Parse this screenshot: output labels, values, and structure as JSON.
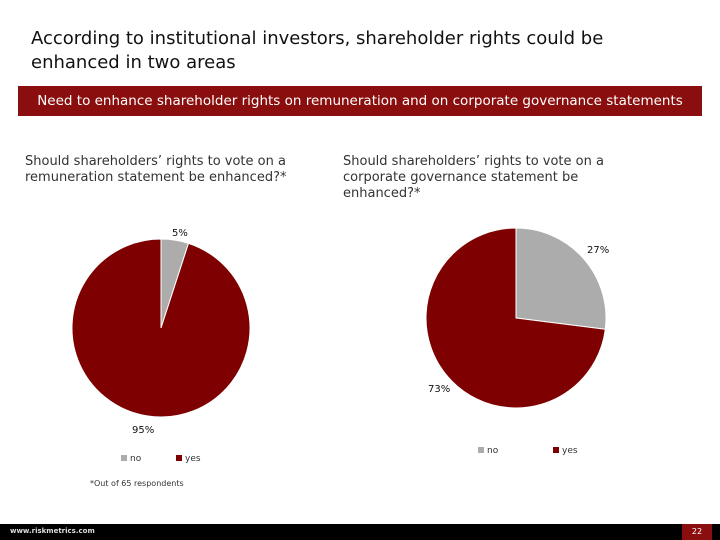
{
  "title": "According to institutional investors, shareholder rights could be enhanced in two areas",
  "banner": "Need to enhance shareholder rights on remuneration and on corporate governance statements",
  "colors": {
    "no": "#acacac",
    "yes": "#7f0000",
    "banner": "#8a0e0e"
  },
  "footnote": "*Out of 65 respondents",
  "footer": {
    "url": "www.riskmetrics.com",
    "page": "22"
  },
  "chart_data": [
    {
      "type": "pie",
      "title": "Should shareholders’ rights to vote on a remuneration statement be enhanced?*",
      "slices": [
        {
          "label": "no",
          "value": 5,
          "display": "5%"
        },
        {
          "label": "yes",
          "value": 95,
          "display": "95%"
        }
      ],
      "legend": [
        "no",
        "yes"
      ]
    },
    {
      "type": "pie",
      "title": "Should shareholders’ rights to vote on a corporate governance statement be enhanced?*",
      "slices": [
        {
          "label": "no",
          "value": 27,
          "display": "27%"
        },
        {
          "label": "yes",
          "value": 73,
          "display": "73%"
        }
      ],
      "legend": [
        "no",
        "yes"
      ]
    }
  ]
}
